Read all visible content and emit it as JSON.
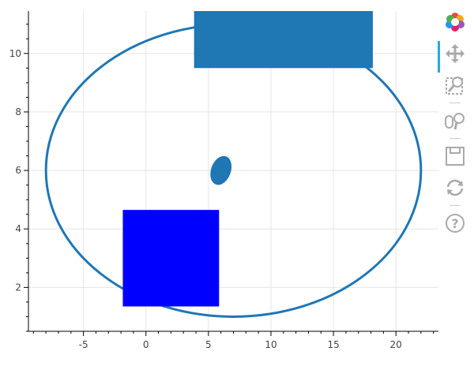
{
  "chart_data": {
    "type": "glyphs",
    "title": "",
    "xlabel": "",
    "ylabel": "",
    "xlim": [
      -9.4,
      23.4
    ],
    "ylim": [
      0.5,
      11.45
    ],
    "x_ticks": [
      -5,
      0,
      5,
      10,
      15,
      20
    ],
    "y_ticks": [
      2,
      4,
      6,
      8,
      10
    ],
    "grid": true,
    "glyphs": [
      {
        "kind": "ellipse-outline",
        "x": 7,
        "y": 6,
        "width": 30,
        "height": 10,
        "color": "#1f77b4"
      },
      {
        "kind": "rect",
        "x": 2,
        "y": 3,
        "width": 7.7,
        "height": 3.3,
        "color": "#0000ff"
      },
      {
        "kind": "rect",
        "x": 11,
        "y": 11,
        "width": 14.3,
        "height": 3,
        "color": "#1f77b4"
      },
      {
        "kind": "ellipse",
        "x": 6,
        "y": 6,
        "width": 1.6,
        "height": 1.0,
        "angle_deg": 20,
        "color": "#1f77b4"
      }
    ]
  },
  "toolbar": {
    "tools": [
      "logo-icon",
      "pan-icon",
      "box-zoom-icon",
      "wheel-zoom-icon",
      "save-icon",
      "reset-icon",
      "help-icon"
    ],
    "active": "pan-icon",
    "active_color": "#26aae1"
  }
}
